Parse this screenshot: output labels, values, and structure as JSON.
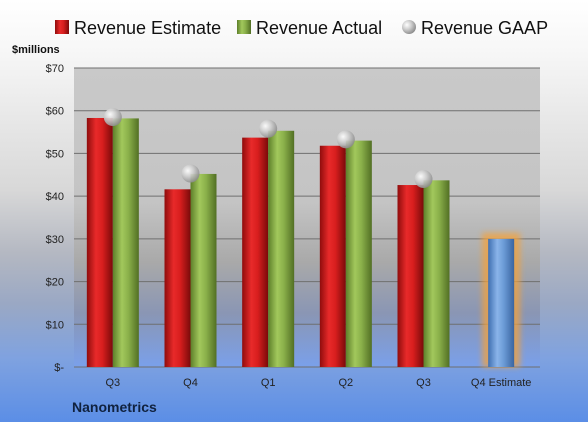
{
  "colors": {
    "estimate": "#d81e1e",
    "actual": "#8ab04a",
    "gaap": "#b7b7b7",
    "future": "#6b9bd6",
    "future_glow": "#f4a23a",
    "company": "#10223f"
  },
  "chart_data": {
    "type": "bar",
    "ylabel": "$millions",
    "company": "Nanometrics",
    "categories": [
      "Q3",
      "Q4",
      "Q1",
      "Q2",
      "Q3",
      "Q4 Estimate"
    ],
    "y_ticks": [
      "$-",
      "$10",
      "$20",
      "$30",
      "$40",
      "$50",
      "$60",
      "$70"
    ],
    "ylim": [
      0,
      70
    ],
    "grid": true,
    "legend_position": "top",
    "series": [
      {
        "name": "Revenue Estimate",
        "type": "bar",
        "values": [
          58.3,
          41.6,
          53.7,
          51.8,
          42.6,
          null
        ]
      },
      {
        "name": "Revenue Actual",
        "type": "bar",
        "values": [
          58.2,
          45.2,
          55.3,
          53.0,
          43.7,
          null
        ]
      },
      {
        "name": "Revenue GAAP",
        "type": "marker",
        "values": [
          58.5,
          45.3,
          55.8,
          53.3,
          44.0,
          null
        ]
      }
    ],
    "estimate_bar": {
      "category": "Q4 Estimate",
      "value": 30.0
    }
  }
}
